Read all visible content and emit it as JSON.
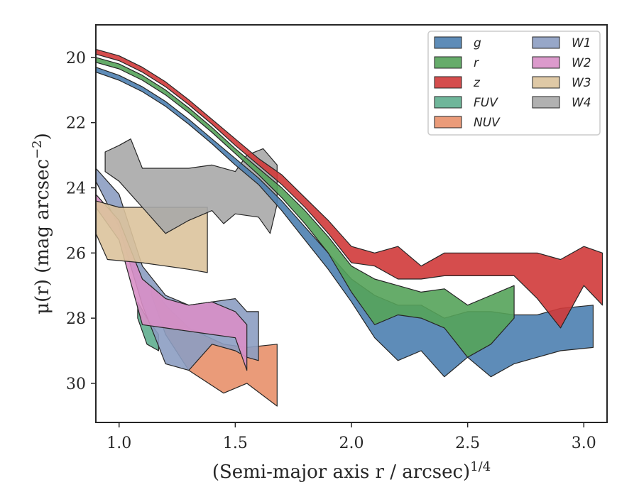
{
  "chart_data": {
    "type": "area",
    "title": "",
    "xlabel": "(Semi-major axis r / arcsec)",
    "xlabel_sup": "1/4",
    "ylabel": "μ(r) (mag arcsec",
    "ylabel_sup": "−2",
    "ylabel_end": ")",
    "xlim": [
      0.9,
      3.1
    ],
    "ylim": [
      31.2,
      19.0
    ],
    "y_inverted": true,
    "grid": false,
    "legend_position": "top-right",
    "xticks": [
      1.0,
      1.5,
      2.0,
      2.5,
      3.0
    ],
    "xtick_labels": [
      "1.0",
      "1.5",
      "2.0",
      "2.5",
      "3.0"
    ],
    "yticks": [
      20,
      22,
      24,
      26,
      28,
      30
    ],
    "ytick_labels": [
      "20",
      "22",
      "24",
      "26",
      "28",
      "30"
    ],
    "series": [
      {
        "name": "FUV",
        "color": "#5fae8f",
        "upper": [
          [
            1.08,
            27.5
          ],
          [
            1.12,
            28.0
          ],
          [
            1.17,
            28.5
          ]
        ],
        "lower": [
          [
            1.08,
            28.0
          ],
          [
            1.12,
            28.8
          ],
          [
            1.17,
            29.0
          ]
        ]
      },
      {
        "name": "NUV",
        "color": "#e8906a",
        "upper": [
          [
            1.14,
            27.0
          ],
          [
            1.2,
            27.6
          ],
          [
            1.3,
            28.3
          ],
          [
            1.45,
            28.8
          ],
          [
            1.55,
            28.9
          ],
          [
            1.68,
            28.8
          ]
        ],
        "lower": [
          [
            1.14,
            27.3
          ],
          [
            1.2,
            28.5
          ],
          [
            1.3,
            29.6
          ],
          [
            1.45,
            30.3
          ],
          [
            1.55,
            30.0
          ],
          [
            1.68,
            30.7
          ]
        ]
      },
      {
        "name": "W1",
        "color": "#8c9dc2",
        "upper": [
          [
            0.9,
            23.4
          ],
          [
            1.0,
            24.2
          ],
          [
            1.1,
            26.4
          ],
          [
            1.2,
            27.3
          ],
          [
            1.3,
            27.6
          ],
          [
            1.4,
            27.5
          ],
          [
            1.5,
            27.4
          ],
          [
            1.55,
            27.8
          ],
          [
            1.6,
            27.8
          ]
        ],
        "lower": [
          [
            0.9,
            23.8
          ],
          [
            1.0,
            25.2
          ],
          [
            1.1,
            27.6
          ],
          [
            1.2,
            29.4
          ],
          [
            1.3,
            29.6
          ],
          [
            1.4,
            28.8
          ],
          [
            1.5,
            29.0
          ],
          [
            1.55,
            29.2
          ],
          [
            1.6,
            29.3
          ]
        ]
      },
      {
        "name": "W2",
        "color": "#d88fc6",
        "upper": [
          [
            0.9,
            24.2
          ],
          [
            1.0,
            25.0
          ],
          [
            1.1,
            26.8
          ],
          [
            1.2,
            27.4
          ],
          [
            1.3,
            27.6
          ],
          [
            1.4,
            27.5
          ],
          [
            1.5,
            27.8
          ],
          [
            1.55,
            28.2
          ]
        ],
        "lower": [
          [
            0.9,
            24.6
          ],
          [
            1.0,
            25.6
          ],
          [
            1.1,
            28.2
          ],
          [
            1.2,
            28.3
          ],
          [
            1.3,
            28.4
          ],
          [
            1.4,
            28.5
          ],
          [
            1.5,
            28.6
          ],
          [
            1.55,
            29.6
          ]
        ]
      },
      {
        "name": "W3",
        "color": "#dcc39c",
        "upper": [
          [
            0.9,
            24.4
          ],
          [
            1.0,
            24.6
          ],
          [
            1.1,
            24.6
          ],
          [
            1.2,
            24.6
          ],
          [
            1.3,
            24.6
          ],
          [
            1.38,
            24.6
          ]
        ],
        "lower": [
          [
            0.9,
            25.4
          ],
          [
            0.95,
            26.2
          ],
          [
            1.1,
            26.3
          ],
          [
            1.2,
            26.4
          ],
          [
            1.3,
            26.5
          ],
          [
            1.38,
            26.6
          ]
        ]
      },
      {
        "name": "W4",
        "color": "#a9a9a9",
        "upper": [
          [
            0.94,
            22.9
          ],
          [
            1.0,
            22.7
          ],
          [
            1.05,
            22.5
          ],
          [
            1.1,
            23.4
          ],
          [
            1.2,
            23.4
          ],
          [
            1.3,
            23.4
          ],
          [
            1.4,
            23.3
          ],
          [
            1.5,
            23.5
          ],
          [
            1.55,
            23.0
          ],
          [
            1.62,
            22.8
          ],
          [
            1.68,
            23.3
          ]
        ],
        "lower": [
          [
            0.94,
            23.5
          ],
          [
            1.0,
            23.8
          ],
          [
            1.1,
            24.6
          ],
          [
            1.2,
            25.4
          ],
          [
            1.3,
            25.0
          ],
          [
            1.4,
            24.7
          ],
          [
            1.45,
            25.1
          ],
          [
            1.5,
            24.8
          ],
          [
            1.6,
            24.9
          ],
          [
            1.65,
            25.4
          ],
          [
            1.68,
            24.5
          ]
        ]
      },
      {
        "name": "g",
        "color": "#4c7fb0",
        "upper": [
          [
            0.9,
            20.3
          ],
          [
            1.0,
            20.55
          ],
          [
            1.1,
            20.9
          ],
          [
            1.2,
            21.35
          ],
          [
            1.3,
            21.9
          ],
          [
            1.4,
            22.5
          ],
          [
            1.5,
            23.1
          ],
          [
            1.6,
            23.7
          ],
          [
            1.7,
            24.4
          ],
          [
            1.8,
            25.2
          ],
          [
            1.9,
            26.0
          ],
          [
            2.0,
            26.8
          ],
          [
            2.1,
            27.3
          ],
          [
            2.2,
            27.6
          ],
          [
            2.3,
            27.6
          ],
          [
            2.4,
            28.0
          ],
          [
            2.5,
            27.8
          ],
          [
            2.6,
            27.8
          ],
          [
            2.7,
            27.9
          ],
          [
            2.8,
            27.9
          ],
          [
            2.9,
            27.7
          ],
          [
            3.04,
            27.6
          ]
        ],
        "lower": [
          [
            0.9,
            20.45
          ],
          [
            1.0,
            20.7
          ],
          [
            1.1,
            21.05
          ],
          [
            1.2,
            21.5
          ],
          [
            1.3,
            22.05
          ],
          [
            1.4,
            22.65
          ],
          [
            1.5,
            23.3
          ],
          [
            1.6,
            23.9
          ],
          [
            1.7,
            24.7
          ],
          [
            1.8,
            25.6
          ],
          [
            1.9,
            26.5
          ],
          [
            2.0,
            27.5
          ],
          [
            2.1,
            28.6
          ],
          [
            2.2,
            29.3
          ],
          [
            2.3,
            29.0
          ],
          [
            2.4,
            29.8
          ],
          [
            2.5,
            29.2
          ],
          [
            2.6,
            29.8
          ],
          [
            2.7,
            29.4
          ],
          [
            2.8,
            29.2
          ],
          [
            2.9,
            29.0
          ],
          [
            3.04,
            28.9
          ]
        ]
      },
      {
        "name": "r",
        "color": "#55a35a",
        "upper": [
          [
            0.9,
            20.0
          ],
          [
            1.0,
            20.2
          ],
          [
            1.1,
            20.55
          ],
          [
            1.2,
            21.0
          ],
          [
            1.3,
            21.55
          ],
          [
            1.4,
            22.15
          ],
          [
            1.5,
            22.8
          ],
          [
            1.6,
            23.4
          ],
          [
            1.7,
            24.0
          ],
          [
            1.8,
            24.7
          ],
          [
            1.9,
            25.5
          ],
          [
            2.0,
            26.4
          ],
          [
            2.1,
            26.8
          ],
          [
            2.2,
            27.0
          ],
          [
            2.3,
            27.2
          ],
          [
            2.4,
            27.1
          ],
          [
            2.5,
            27.6
          ],
          [
            2.6,
            27.3
          ],
          [
            2.7,
            27.0
          ]
        ],
        "lower": [
          [
            0.9,
            20.15
          ],
          [
            1.0,
            20.35
          ],
          [
            1.1,
            20.7
          ],
          [
            1.2,
            21.15
          ],
          [
            1.3,
            21.7
          ],
          [
            1.4,
            22.3
          ],
          [
            1.5,
            22.95
          ],
          [
            1.6,
            23.6
          ],
          [
            1.7,
            24.3
          ],
          [
            1.8,
            25.1
          ],
          [
            1.9,
            26.0
          ],
          [
            2.0,
            27.2
          ],
          [
            2.1,
            28.2
          ],
          [
            2.2,
            27.9
          ],
          [
            2.3,
            28.0
          ],
          [
            2.4,
            28.3
          ],
          [
            2.5,
            29.2
          ],
          [
            2.6,
            28.8
          ],
          [
            2.7,
            28.0
          ]
        ]
      },
      {
        "name": "z",
        "color": "#d03a3a",
        "upper": [
          [
            0.9,
            19.75
          ],
          [
            1.0,
            19.95
          ],
          [
            1.1,
            20.3
          ],
          [
            1.2,
            20.75
          ],
          [
            1.3,
            21.3
          ],
          [
            1.4,
            21.9
          ],
          [
            1.5,
            22.5
          ],
          [
            1.6,
            23.1
          ],
          [
            1.7,
            23.6
          ],
          [
            1.8,
            24.3
          ],
          [
            1.9,
            25.0
          ],
          [
            2.0,
            25.8
          ],
          [
            2.1,
            26.0
          ],
          [
            2.2,
            25.8
          ],
          [
            2.3,
            26.4
          ],
          [
            2.4,
            26.0
          ],
          [
            2.5,
            26.0
          ],
          [
            2.6,
            26.0
          ],
          [
            2.7,
            26.0
          ],
          [
            2.8,
            26.0
          ],
          [
            2.9,
            26.2
          ],
          [
            3.0,
            25.8
          ],
          [
            3.08,
            26.0
          ]
        ],
        "lower": [
          [
            0.9,
            19.9
          ],
          [
            1.0,
            20.1
          ],
          [
            1.1,
            20.45
          ],
          [
            1.2,
            20.9
          ],
          [
            1.3,
            21.45
          ],
          [
            1.4,
            22.05
          ],
          [
            1.5,
            22.7
          ],
          [
            1.6,
            23.3
          ],
          [
            1.7,
            23.9
          ],
          [
            1.8,
            24.6
          ],
          [
            1.9,
            25.4
          ],
          [
            2.0,
            26.3
          ],
          [
            2.1,
            26.4
          ],
          [
            2.2,
            26.8
          ],
          [
            2.3,
            26.8
          ],
          [
            2.4,
            26.7
          ],
          [
            2.5,
            26.7
          ],
          [
            2.6,
            26.7
          ],
          [
            2.7,
            26.7
          ],
          [
            2.8,
            27.4
          ],
          [
            2.9,
            28.3
          ],
          [
            3.0,
            27.0
          ],
          [
            3.08,
            27.6
          ]
        ]
      }
    ],
    "legend": [
      {
        "label": "g",
        "color": "#4c7fb0"
      },
      {
        "label": "r",
        "color": "#55a35a"
      },
      {
        "label": "z",
        "color": "#d03a3a"
      },
      {
        "label": "FUV",
        "color": "#5fae8f"
      },
      {
        "label": "NUV",
        "color": "#e8906a"
      },
      {
        "label": "W1",
        "color": "#8c9dc2"
      },
      {
        "label": "W2",
        "color": "#d88fc6"
      },
      {
        "label": "W3",
        "color": "#dcc39c"
      },
      {
        "label": "W4",
        "color": "#a9a9a9"
      }
    ]
  }
}
